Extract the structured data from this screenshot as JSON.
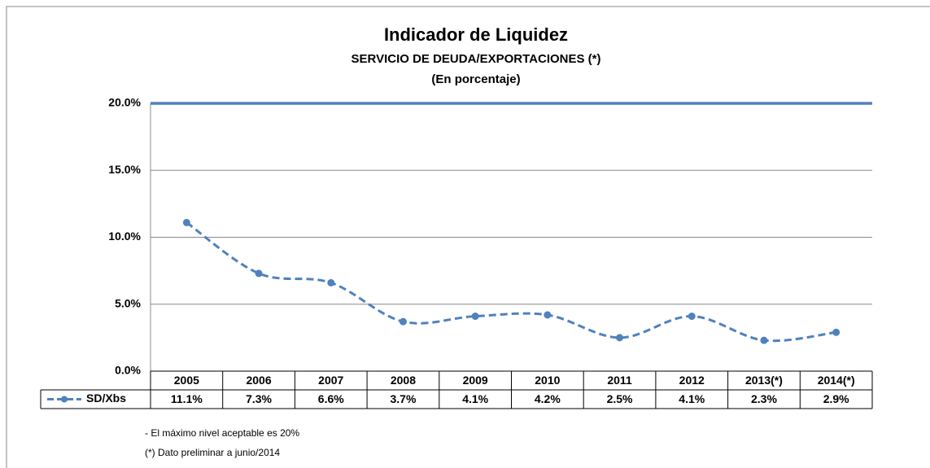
{
  "chart_data": {
    "type": "line",
    "title": "Indicador de Liquidez",
    "subtitle": "SERVICIO DE DEUDA/EXPORTACIONES (*)",
    "subtitle2": "(En porcentaje)",
    "categories": [
      "2005",
      "2006",
      "2007",
      "2008",
      "2009",
      "2010",
      "2011",
      "2012",
      "2013(*)",
      "2014(*)"
    ],
    "series": [
      {
        "name": "SD/Xbs",
        "color": "#4f81bd",
        "values": [
          11.1,
          7.3,
          6.6,
          3.7,
          4.1,
          4.2,
          2.5,
          4.1,
          2.3,
          2.9
        ],
        "value_labels": [
          "11.1%",
          "7.3%",
          "6.6%",
          "3.7%",
          "4.1%",
          "4.2%",
          "2.5%",
          "4.1%",
          "2.3%",
          "2.9%"
        ]
      }
    ],
    "threshold": 20,
    "threshold_color": "#4f81bd",
    "ylim": [
      0,
      20
    ],
    "yticks": [
      {
        "value": 0,
        "label": "0.0%"
      },
      {
        "value": 5,
        "label": "5.0%"
      },
      {
        "value": 10,
        "label": "10.0%"
      },
      {
        "value": 15,
        "label": "15.0%"
      },
      {
        "value": 20,
        "label": "20.0%"
      }
    ],
    "grid": true,
    "notes": [
      "- El máximo nivel aceptable es 20%",
      "(*) Dato preliminar a junio/2014"
    ]
  }
}
